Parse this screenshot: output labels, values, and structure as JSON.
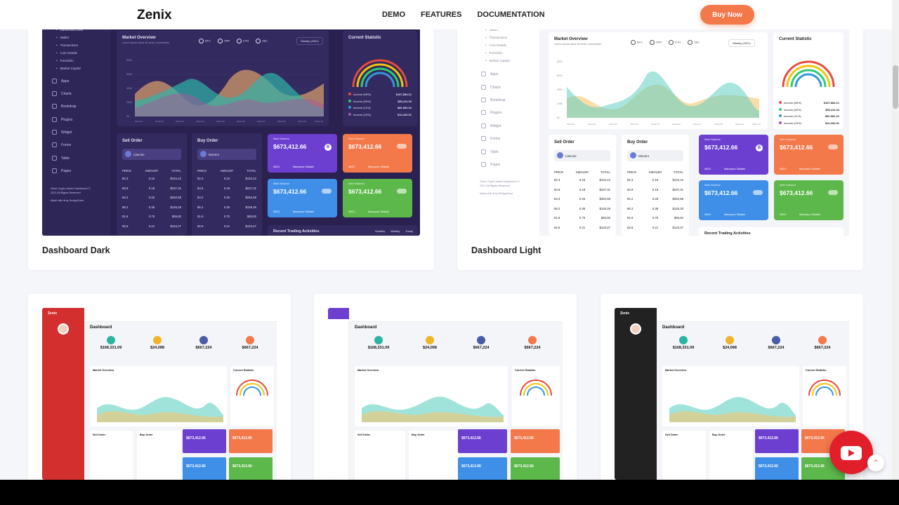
{
  "nav": {
    "logo": "Zenix",
    "links": [
      "DEMO",
      "FEATURES",
      "DOCUMENTATION"
    ],
    "buy_label": "Buy Now"
  },
  "cards": {
    "dark": {
      "caption": "Dashboard Dark"
    },
    "light": {
      "caption": "Dashboard Light"
    }
  },
  "preview": {
    "sidebar_sub": [
      "Dashboard Dark",
      "Wallet",
      "Transactions",
      "Coin Details",
      "Portofolio",
      "Market Capital"
    ],
    "sidebar_main": [
      "Apps",
      "Charts",
      "Bootstrap",
      "Plugins",
      "Widget",
      "Forms",
      "Table",
      "Pages"
    ],
    "sidebar_footer_1": "Zenix Crypto Admin Dashboard ©",
    "sidebar_footer_2": "2021 All Rights Reserved",
    "sidebar_footer_3": "Made with ♥ by DexignZone",
    "market_title": "Market Overview",
    "market_sub": "Lorem ipsum dolor sit amet, consectetur",
    "coins": [
      "BTC",
      "XRP",
      "ETH",
      "ZEC"
    ],
    "weekly": "Weekly (2021)",
    "y_ticks": [
      "800k",
      "600k",
      "400k",
      "200k",
      "0k"
    ],
    "x_ticks": [
      "Week 01",
      "Week 02",
      "Week 03",
      "Week 04",
      "Week 05",
      "Week 06",
      "Week 07",
      "Week 08",
      "Week 09",
      "Week 10"
    ],
    "stat_title": "Current Statistic",
    "stat_rows": [
      {
        "label": "Income (66%)",
        "value": "$167,884.21",
        "color": "#e74c3c"
      },
      {
        "label": "Income (50%)",
        "value": "$56,411.33",
        "color": "#2ecc71"
      },
      {
        "label": "Income (11%)",
        "value": "$81,981.22",
        "color": "#3498db"
      },
      {
        "label": "Income (23%)",
        "value": "$12,432.51",
        "color": "#9b59b6"
      }
    ],
    "sell_title": "Sell Order",
    "sell_coin": "Litecoin",
    "buy_title": "Buy Order",
    "buy_coin": "Monero",
    "order_head": [
      "PRICE",
      "AMOUNT",
      "TOTAL"
    ],
    "order_rows": [
      [
        "82.3",
        "0.15",
        "$134,12"
      ],
      [
        "83.9",
        "0.18",
        "$237,31"
      ],
      [
        "84.2",
        "0.25",
        "$252,58"
      ],
      [
        "86.2",
        "0.35",
        "$126,26"
      ],
      [
        "91.6",
        "0.75",
        "$46,92"
      ],
      [
        "92.6",
        "0.21",
        "$123,27"
      ]
    ],
    "bal_label": "Main Balance",
    "bal_value": "$673,412.66",
    "bal_date": "08/21",
    "bal_name": "Marquezz Silalahi",
    "recent": "Recent Trading Activities",
    "tabs": [
      "Monthly",
      "Weekly",
      "Today"
    ]
  },
  "mini": {
    "dashboard": "Dashboard",
    "stats": [
      "$168,331.09",
      "$24,098",
      "$667,224",
      "$667,224"
    ],
    "market": "Market Overview",
    "current": "Current Statistic",
    "sell": "Sell Order",
    "buy": "Buy Order",
    "bal": "$673,412.66",
    "brand": "Zenix"
  },
  "colors": {
    "accent": "#f3784a",
    "dark_bg": "#2c2052",
    "purple": "#6c3fd0",
    "orange": "#f3784a",
    "blue": "#3f8fe8",
    "green": "#5cb84a",
    "red_sidebar": "#d32f2f"
  }
}
